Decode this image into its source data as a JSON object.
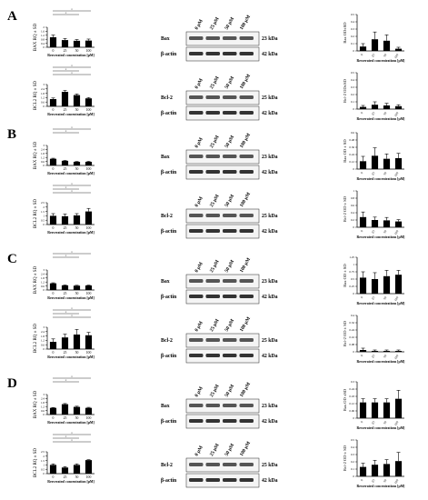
{
  "panels": [
    {
      "letter": "A",
      "pqTop": "BAX RQ ± SD",
      "pqBot": "BCL2 RQ ± SD",
      "westTop": {
        "protein": "Bax",
        "kda": "23 kDa"
      },
      "westBot": {
        "protein": "Bcl-2",
        "kda": "25 kDa"
      },
      "odTop": "Bax OD±SD",
      "odBot": "Bcl-2 OD±SD"
    },
    {
      "letter": "B",
      "pqTop": "BAX RQ ± SD",
      "pqBot": "BCL2 RQ ± SD",
      "westTop": {
        "protein": "Bax",
        "kda": "23 kDa"
      },
      "westBot": {
        "protein": "Bcl-2",
        "kda": "25 kDa"
      },
      "odTop": "Bax OD ± SD",
      "odBot": "Bcl-2 OD ± SD"
    },
    {
      "letter": "C",
      "pqTop": "BAX RQ ± SD",
      "pqBot": "BCL2 RQ ± SD",
      "westTop": {
        "protein": "Bax",
        "kda": "23 kDa"
      },
      "westBot": {
        "protein": "Bcl-2",
        "kda": "25 kDa"
      },
      "odTop": "Bax OD ± SD",
      "odBot": "Bcl-2 OD ± SD"
    },
    {
      "letter": "D",
      "pqTop": "BAX RQ ± SD",
      "pqBot": "BCL2 RQ ± SD",
      "westTop": {
        "protein": "Bax",
        "kda": "23 kDa"
      },
      "westBot": {
        "protein": "Bcl-2",
        "kda": "25 kDa"
      },
      "odTop": "Bax OD ±SD",
      "odBot": "Bcl-2 OD ± SD"
    }
  ],
  "common": {
    "actin": "β-actin",
    "actin_kda": "42 kDa",
    "lanes": [
      "0 μM",
      "25 μM",
      "50 μM",
      "100 μM"
    ],
    "pq_xlabel": "Resveratrol concentration [μM]",
    "od_xlabel": "Resveratrol concentrations [μM]",
    "x_ticks": [
      "0",
      "25",
      "50",
      "100"
    ]
  },
  "chart_data": [
    {
      "panel": "A",
      "type": "bar",
      "name": "BAX mRNA",
      "categories": [
        "0",
        "25",
        "50",
        "100"
      ],
      "values": [
        1.0,
        0.72,
        0.65,
        0.67
      ],
      "errors": [
        0.22,
        0.15,
        0.12,
        0.15
      ],
      "ylim": [
        0,
        2
      ]
    },
    {
      "panel": "A",
      "type": "bar",
      "name": "BCL2 mRNA",
      "categories": [
        "0",
        "25",
        "50",
        "100"
      ],
      "values": [
        1.0,
        2.0,
        1.55,
        1.1
      ],
      "errors": [
        0.15,
        0.18,
        0.15,
        0.12
      ],
      "ylim": [
        0,
        3
      ]
    },
    {
      "panel": "A",
      "type": "bar",
      "name": "Bax OD",
      "categories": [
        "0",
        "25",
        "50",
        "100"
      ],
      "values": [
        0.06,
        0.16,
        0.14,
        0.03
      ],
      "errors": [
        0.04,
        0.1,
        0.08,
        0.02
      ],
      "ylim": [
        0,
        0.5
      ]
    },
    {
      "panel": "A",
      "type": "bar",
      "name": "Bcl-2 OD",
      "categories": [
        "0",
        "25",
        "50",
        "100"
      ],
      "values": [
        0.03,
        0.06,
        0.05,
        0.04
      ],
      "errors": [
        0.02,
        0.04,
        0.03,
        0.02
      ],
      "ylim": [
        0,
        0.5
      ]
    },
    {
      "panel": "B",
      "type": "bar",
      "name": "BAX mRNA",
      "categories": [
        "0",
        "25",
        "50",
        "100"
      ],
      "values": [
        1.0,
        0.7,
        0.55,
        0.55
      ],
      "errors": [
        0.08,
        0.05,
        0.04,
        0.06
      ],
      "ylim": [
        0,
        3
      ]
    },
    {
      "panel": "B",
      "type": "bar",
      "name": "BCL2 mRNA",
      "categories": [
        "0",
        "25",
        "50",
        "100"
      ],
      "values": [
        1.0,
        0.95,
        1.05,
        1.5
      ],
      "errors": [
        0.25,
        0.25,
        0.2,
        0.35
      ],
      "ylim": [
        0,
        2.5
      ]
    },
    {
      "panel": "B",
      "type": "bar",
      "name": "Bax OD",
      "categories": [
        "0",
        "25",
        "50",
        "100"
      ],
      "values": [
        0.13,
        0.22,
        0.17,
        0.18
      ],
      "errors": [
        0.08,
        0.13,
        0.08,
        0.08
      ],
      "ylim": [
        0,
        0.6
      ]
    },
    {
      "panel": "B",
      "type": "bar",
      "name": "Bcl-2 OD",
      "categories": [
        "0",
        "25",
        "50",
        "100"
      ],
      "values": [
        0.28,
        0.2,
        0.19,
        0.16
      ],
      "errors": [
        0.14,
        0.08,
        0.08,
        0.05
      ],
      "ylim": [
        0,
        1
      ]
    },
    {
      "panel": "C",
      "type": "bar",
      "name": "BAX mRNA",
      "categories": [
        "0",
        "25",
        "50",
        "100"
      ],
      "values": [
        1.0,
        0.7,
        0.65,
        0.68
      ],
      "errors": [
        0.08,
        0.05,
        0.06,
        0.05
      ],
      "ylim": [
        0,
        3
      ]
    },
    {
      "panel": "C",
      "type": "bar",
      "name": "BCL2 mRNA",
      "categories": [
        "0",
        "25",
        "50",
        "100"
      ],
      "values": [
        1.0,
        1.6,
        2.0,
        1.9
      ],
      "errors": [
        0.4,
        0.45,
        0.7,
        0.4
      ],
      "ylim": [
        0,
        3
      ]
    },
    {
      "panel": "C",
      "type": "bar",
      "name": "Bax OD",
      "categories": [
        "0",
        "25",
        "50",
        "100"
      ],
      "values": [
        0.55,
        0.5,
        0.6,
        0.65
      ],
      "errors": [
        0.2,
        0.22,
        0.2,
        0.15
      ],
      "ylim": [
        0,
        1.25
      ]
    },
    {
      "panel": "C",
      "type": "bar",
      "name": "Bcl-2 OD",
      "categories": [
        "0",
        "25",
        "50",
        "100"
      ],
      "values": [
        0.02,
        0.01,
        0.01,
        0.01
      ],
      "errors": [
        0.02,
        0.01,
        0.01,
        0.01
      ],
      "ylim": [
        0,
        0.4
      ]
    },
    {
      "panel": "D",
      "type": "bar",
      "name": "BAX mRNA",
      "categories": [
        "0",
        "25",
        "50",
        "100"
      ],
      "values": [
        1.0,
        1.55,
        1.15,
        1.0
      ],
      "errors": [
        0.05,
        0.1,
        0.1,
        0.08
      ],
      "ylim": [
        0,
        3
      ]
    },
    {
      "panel": "D",
      "type": "bar",
      "name": "BCL2 mRNA",
      "categories": [
        "0",
        "25",
        "50",
        "100"
      ],
      "values": [
        1.0,
        0.7,
        1.0,
        1.55
      ],
      "errors": [
        0.12,
        0.1,
        0.12,
        0.05
      ],
      "ylim": [
        0,
        2.5
      ]
    },
    {
      "panel": "D",
      "type": "bar",
      "name": "Bax OD",
      "categories": [
        "0",
        "25",
        "50",
        "100"
      ],
      "values": [
        0.13,
        0.13,
        0.13,
        0.16
      ],
      "errors": [
        0.03,
        0.03,
        0.03,
        0.07
      ],
      "ylim": [
        0,
        0.3
      ]
    },
    {
      "panel": "D",
      "type": "bar",
      "name": "Bcl-2 OD",
      "categories": [
        "0",
        "25",
        "50",
        "100"
      ],
      "values": [
        0.13,
        0.16,
        0.17,
        0.21
      ],
      "errors": [
        0.05,
        0.06,
        0.06,
        0.12
      ],
      "ylim": [
        0,
        0.5
      ]
    }
  ]
}
